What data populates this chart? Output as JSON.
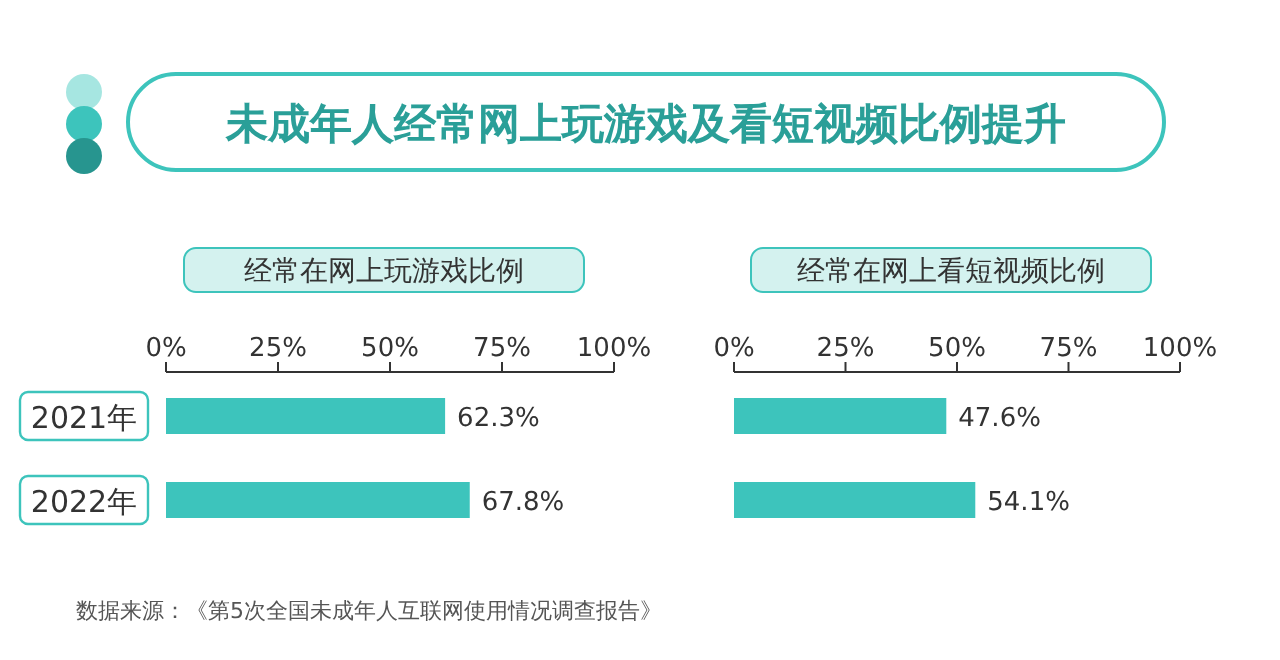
{
  "chart_data": [
    {
      "type": "bar",
      "orientation": "horizontal",
      "title": "未成年人经常网上玩游戏及看短视频比例提升",
      "subtitle": "经常在网上玩游戏比例",
      "categories": [
        "2021年",
        "2022年"
      ],
      "values": [
        62.3,
        67.8
      ],
      "value_labels": [
        "62.3%",
        "67.8%"
      ],
      "color": "#3dc4bc",
      "xlim": [
        0,
        100
      ],
      "xticks": [
        {
          "value": 0,
          "label": "0%"
        },
        {
          "value": 25,
          "label": "25%"
        },
        {
          "value": 50,
          "label": "50%"
        },
        {
          "value": 75,
          "label": "75%"
        },
        {
          "value": 100,
          "label": "100%"
        }
      ],
      "annotations": [
        "数据来源：《第5次全国未成年人互联网使用情况调查报告》"
      ]
    },
    {
      "type": "bar",
      "orientation": "horizontal",
      "subtitle": "经常在网上看短视频比例",
      "categories": [
        null,
        null
      ],
      "values": [
        47.6,
        54.1
      ],
      "value_labels": [
        "47.6%",
        "54.1%"
      ],
      "color": "#3dc4bc",
      "xlim": [
        0,
        100
      ],
      "xticks": [
        {
          "value": 0,
          "label": "0%"
        },
        {
          "value": 25,
          "label": "25%"
        },
        {
          "value": 50,
          "label": "50%"
        },
        {
          "value": 75,
          "label": "75%"
        },
        {
          "value": 100,
          "label": "100%"
        }
      ]
    }
  ]
}
